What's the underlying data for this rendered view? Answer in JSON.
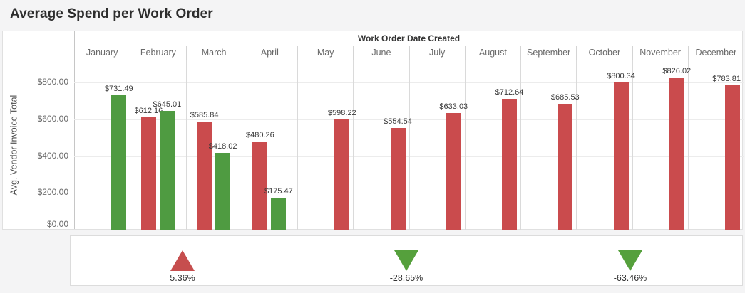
{
  "title": "Average Spend per Work Order",
  "chart_data": {
    "type": "bar",
    "title": "Average Spend per Work Order",
    "column_header": "Work Order Date Created",
    "xlabel": "Work Order Date Created",
    "ylabel": "Avg. Vendor Invoice Total",
    "ylim": [
      0,
      920
    ],
    "grid": "horizontal",
    "legend": "none",
    "value_prefix": "$",
    "categories": [
      "January",
      "February",
      "March",
      "April",
      "May",
      "June",
      "July",
      "August",
      "September",
      "October",
      "November",
      "December"
    ],
    "series": [
      {
        "name": "red",
        "color": "#ca4b4d",
        "values": [
          null,
          612.16,
          585.84,
          480.26,
          598.22,
          554.54,
          633.03,
          712.64,
          685.53,
          800.34,
          826.02,
          783.81
        ]
      },
      {
        "name": "green",
        "color": "#4f9b41",
        "values": [
          731.49,
          645.01,
          418.02,
          175.47,
          null,
          null,
          null,
          null,
          null,
          null,
          null,
          null
        ]
      }
    ],
    "yticks": [
      {
        "value": 0,
        "label": "$0.00"
      },
      {
        "value": 200,
        "label": "$200.00"
      },
      {
        "value": 400,
        "label": "$400.00"
      },
      {
        "value": 600,
        "label": "$600.00"
      },
      {
        "value": 800,
        "label": "$800.00"
      }
    ],
    "bar_labels": [
      "$731.49",
      "$612.16",
      "$645.01",
      "$585.84",
      "$418.02",
      "$480.26",
      "$175.47",
      "$598.22",
      "$554.54",
      "$633.03",
      "$712.64",
      "$685.53",
      "$800.34",
      "$826.02",
      "$783.81"
    ]
  },
  "indicators": {
    "items": [
      {
        "label": "5.36%",
        "direction": "up",
        "color": "#c64e4e"
      },
      {
        "label": "-28.65%",
        "direction": "down",
        "color": "#55a03c"
      },
      {
        "label": "-63.46%",
        "direction": "down",
        "color": "#55a03c"
      }
    ]
  }
}
